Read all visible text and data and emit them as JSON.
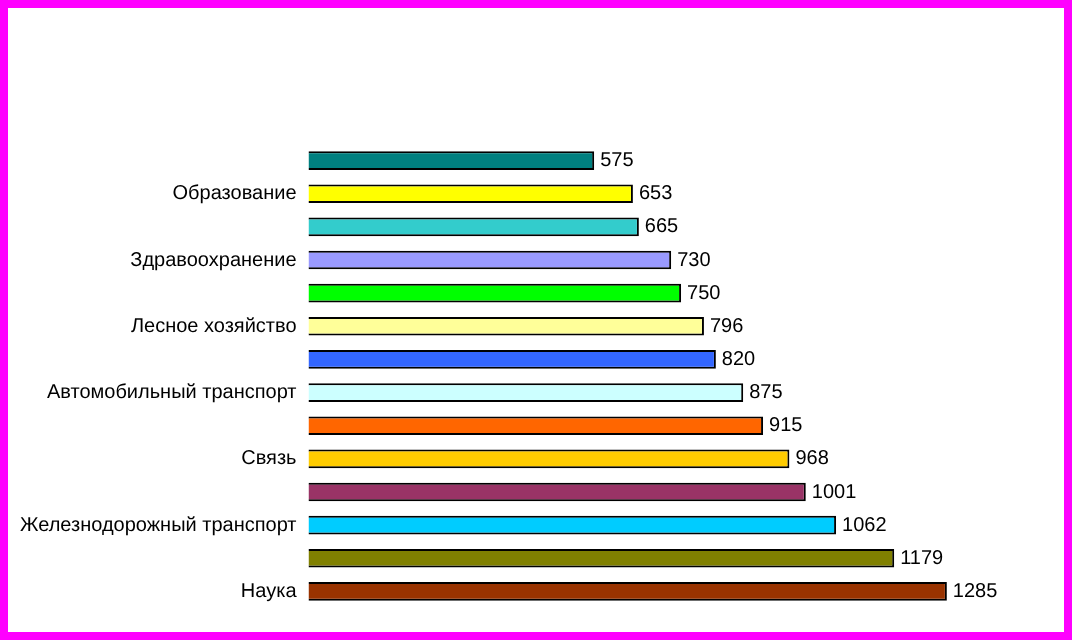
{
  "chart_data": {
    "type": "bar",
    "orientation": "horizontal",
    "categories": [
      null,
      "Образование",
      null,
      "Здравоохранение",
      null,
      "Лесное хозяйство",
      null,
      "Автомобильный транспорт",
      null,
      "Связь",
      null,
      "Железнодорожный транспорт",
      null,
      "Наука"
    ],
    "values": [
      575,
      653,
      665,
      730,
      750,
      796,
      820,
      875,
      915,
      968,
      1001,
      1062,
      1179,
      1285
    ],
    "colors": [
      "#008080",
      "#ffff00",
      "#33cccc",
      "#9999ff",
      "#00ff00",
      "#ffff99",
      "#3366ff",
      "#ccffff",
      "#ff6600",
      "#ffcc00",
      "#993366",
      "#00ccff",
      "#808000",
      "#993300"
    ],
    "data_labels": true,
    "tick_labels": "y",
    "legend": false
  }
}
